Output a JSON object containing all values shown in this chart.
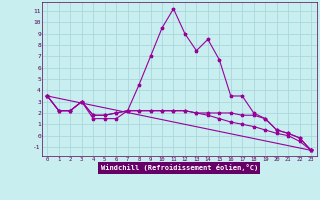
{
  "xlabel": "Windchill (Refroidissement éolien,°C)",
  "bg_color": "#c8eef0",
  "line_color": "#990099",
  "grid_color": "#a8d8dc",
  "xlim": [
    -0.5,
    23.5
  ],
  "ylim": [
    -1.8,
    11.8
  ],
  "xticks": [
    0,
    1,
    2,
    3,
    4,
    5,
    6,
    7,
    8,
    9,
    10,
    11,
    12,
    13,
    14,
    15,
    16,
    17,
    18,
    19,
    20,
    21,
    22,
    23
  ],
  "yticks": [
    -1,
    0,
    1,
    2,
    3,
    4,
    5,
    6,
    7,
    8,
    9,
    10,
    11
  ],
  "line1_x": [
    0,
    1,
    2,
    3,
    4,
    5,
    6,
    7,
    8,
    9,
    10,
    11,
    12,
    13,
    14,
    15,
    16,
    17,
    18,
    19,
    20,
    21,
    22,
    23
  ],
  "line1_y": [
    3.5,
    2.2,
    2.2,
    3.0,
    1.5,
    1.5,
    1.5,
    2.2,
    4.5,
    7.0,
    9.5,
    11.2,
    9.0,
    7.5,
    8.5,
    6.7,
    3.5,
    3.5,
    2.0,
    1.5,
    0.5,
    0.2,
    -0.2,
    -1.3
  ],
  "line2_x": [
    0,
    1,
    2,
    3,
    4,
    5,
    6,
    7,
    8,
    9,
    10,
    11,
    12,
    13,
    14,
    15,
    16,
    17,
    18,
    19,
    20,
    21,
    22,
    23
  ],
  "line2_y": [
    3.5,
    2.2,
    2.2,
    3.0,
    1.8,
    1.8,
    2.0,
    2.2,
    2.2,
    2.2,
    2.2,
    2.2,
    2.2,
    2.0,
    2.0,
    2.0,
    2.0,
    1.8,
    1.8,
    1.5,
    0.5,
    0.2,
    -0.2,
    -1.3
  ],
  "line3_x": [
    0,
    1,
    2,
    3,
    4,
    5,
    6,
    7,
    8,
    9,
    10,
    11,
    12,
    13,
    14,
    15,
    16,
    17,
    18,
    19,
    20,
    21,
    22,
    23
  ],
  "line3_y": [
    3.5,
    2.2,
    2.2,
    3.0,
    1.8,
    1.8,
    2.0,
    2.2,
    2.2,
    2.2,
    2.2,
    2.2,
    2.2,
    2.0,
    1.8,
    1.5,
    1.2,
    1.0,
    0.8,
    0.5,
    0.2,
    0.0,
    -0.5,
    -1.3
  ],
  "line4_x": [
    0,
    23
  ],
  "line4_y": [
    3.5,
    -1.3
  ]
}
